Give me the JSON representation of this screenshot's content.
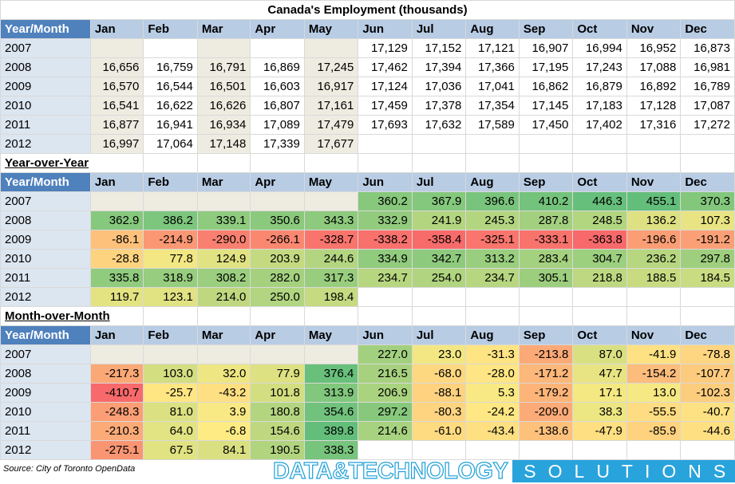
{
  "title": "Canada's Employment (thousands)",
  "header_label": "Year/Month",
  "months": [
    "Jan",
    "Feb",
    "Mar",
    "Apr",
    "May",
    "Jun",
    "Jul",
    "Aug",
    "Sep",
    "Oct",
    "Nov",
    "Dec"
  ],
  "colors": {
    "header_blue": "#4f81bd",
    "header_light": "#b8cce4",
    "year_cell": "#dce6f1",
    "beige": "#eeece1",
    "scale_low": "#f8696b",
    "scale_mid": "#ffeb84",
    "scale_high": "#63be7b"
  },
  "sections": [
    {
      "label": "",
      "kind": "levels",
      "rows": [
        {
          "year": "2007",
          "cells": [
            "",
            "",
            "",
            "",
            "",
            "17,129",
            "17,152",
            "17,121",
            "16,907",
            "16,994",
            "16,952",
            "16,873"
          ]
        },
        {
          "year": "2008",
          "cells": [
            "16,656",
            "16,759",
            "16,791",
            "16,869",
            "17,245",
            "17,462",
            "17,394",
            "17,366",
            "17,195",
            "17,243",
            "17,088",
            "16,981"
          ]
        },
        {
          "year": "2009",
          "cells": [
            "16,570",
            "16,544",
            "16,501",
            "16,603",
            "16,917",
            "17,124",
            "17,036",
            "17,041",
            "16,862",
            "16,879",
            "16,892",
            "16,789"
          ]
        },
        {
          "year": "2010",
          "cells": [
            "16,541",
            "16,622",
            "16,626",
            "16,807",
            "17,161",
            "17,459",
            "17,378",
            "17,354",
            "17,145",
            "17,183",
            "17,128",
            "17,087"
          ]
        },
        {
          "year": "2011",
          "cells": [
            "16,877",
            "16,941",
            "16,934",
            "17,089",
            "17,479",
            "17,693",
            "17,632",
            "17,589",
            "17,450",
            "17,402",
            "17,316",
            "17,272"
          ]
        },
        {
          "year": "2012",
          "cells": [
            "16,997",
            "17,064",
            "17,148",
            "17,339",
            "17,677",
            "",
            "",
            "",
            "",
            "",
            "",
            ""
          ]
        }
      ]
    },
    {
      "label": "Year-over-Year",
      "kind": "heat",
      "rows": [
        {
          "year": "2007",
          "cells": [
            "",
            "",
            "",
            "",
            "",
            "360.2",
            "367.9",
            "396.6",
            "410.2",
            "446.3",
            "455.1",
            "370.3"
          ]
        },
        {
          "year": "2008",
          "cells": [
            "362.9",
            "386.2",
            "339.1",
            "350.6",
            "343.3",
            "332.9",
            "241.9",
            "245.3",
            "287.8",
            "248.5",
            "136.2",
            "107.3"
          ]
        },
        {
          "year": "2009",
          "cells": [
            "-86.1",
            "-214.9",
            "-290.0",
            "-266.1",
            "-328.7",
            "-338.2",
            "-358.4",
            "-325.1",
            "-333.1",
            "-363.8",
            "-196.6",
            "-191.2"
          ]
        },
        {
          "year": "2010",
          "cells": [
            "-28.8",
            "77.8",
            "124.9",
            "203.9",
            "244.6",
            "334.9",
            "342.7",
            "313.2",
            "283.4",
            "304.7",
            "236.2",
            "297.8"
          ]
        },
        {
          "year": "2011",
          "cells": [
            "335.8",
            "318.9",
            "308.2",
            "282.0",
            "317.3",
            "234.7",
            "254.0",
            "234.7",
            "305.1",
            "218.8",
            "188.5",
            "184.5"
          ]
        },
        {
          "year": "2012",
          "cells": [
            "119.7",
            "123.1",
            "214.0",
            "250.0",
            "198.4",
            "",
            "",
            "",
            "",
            "",
            "",
            ""
          ]
        }
      ]
    },
    {
      "label": "Month-over-Month",
      "kind": "heat",
      "rows": [
        {
          "year": "2007",
          "cells": [
            "",
            "",
            "",
            "",
            "",
            "227.0",
            "23.0",
            "-31.3",
            "-213.8",
            "87.0",
            "-41.9",
            "-78.8"
          ]
        },
        {
          "year": "2008",
          "cells": [
            "-217.3",
            "103.0",
            "32.0",
            "77.9",
            "376.4",
            "216.5",
            "-68.0",
            "-28.0",
            "-171.2",
            "47.7",
            "-154.2",
            "-107.7"
          ]
        },
        {
          "year": "2009",
          "cells": [
            "-410.7",
            "-25.7",
            "-43.2",
            "101.8",
            "313.9",
            "206.9",
            "-88.1",
            "5.3",
            "-179.2",
            "17.1",
            "13.0",
            "-102.3"
          ]
        },
        {
          "year": "2010",
          "cells": [
            "-248.3",
            "81.0",
            "3.9",
            "180.8",
            "354.6",
            "297.2",
            "-80.3",
            "-24.2",
            "-209.0",
            "38.3",
            "-55.5",
            "-40.7"
          ]
        },
        {
          "year": "2011",
          "cells": [
            "-210.3",
            "64.0",
            "-6.8",
            "154.6",
            "389.8",
            "214.6",
            "-61.0",
            "-43.4",
            "-138.6",
            "-47.9",
            "-85.9",
            "-44.6"
          ]
        },
        {
          "year": "2012",
          "cells": [
            "-275.1",
            "67.5",
            "84.1",
            "190.5",
            "338.3",
            "",
            "",
            "",
            "",
            "",
            "",
            ""
          ]
        }
      ]
    }
  ],
  "source": "Source: City of Toronto OpenData",
  "logo": {
    "main": "DATA&TECHNOLOGY",
    "sub": "SOLUTIONS"
  }
}
